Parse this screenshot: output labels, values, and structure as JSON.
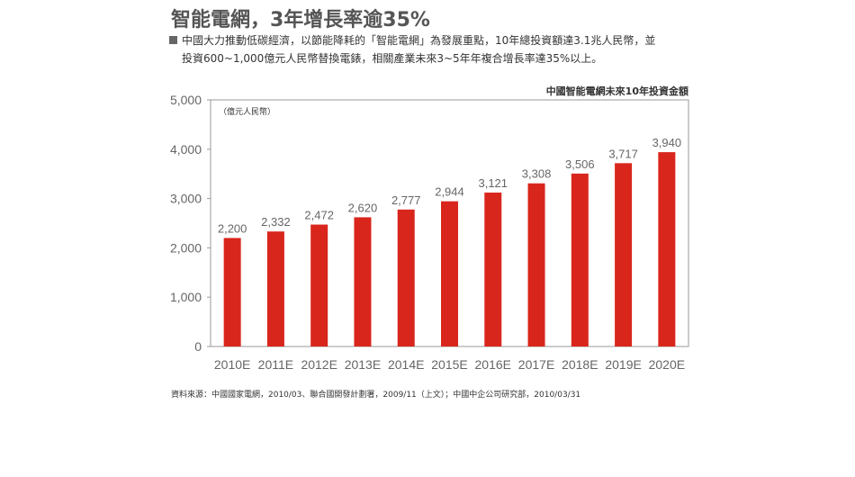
{
  "header": {
    "title": "智能電網，3年增長率逾35%",
    "bullet_line1": "中國大力推動低碳經濟，以節能降耗的「智能電網」為發展重點，10年總投資額達3.1兆人民幣，並",
    "bullet_line2": "投資600~1,000億元人民幣替換電錶，相關產業未來3~5年年複合增長率達35%以上。"
  },
  "chart_data": {
    "type": "bar",
    "title": "中國智能電網未來10年投資金額",
    "unit": "（億元人民幣）",
    "categories": [
      "2010E",
      "2011E",
      "2012E",
      "2013E",
      "2014E",
      "2015E",
      "2016E",
      "2017E",
      "2018E",
      "2019E",
      "2020E"
    ],
    "values": [
      2200,
      2332,
      2472,
      2620,
      2777,
      2944,
      3121,
      3308,
      3506,
      3717,
      3940
    ],
    "data_labels": [
      "2,200",
      "2,332",
      "2,472",
      "2,620",
      "2,777",
      "2,944",
      "3,121",
      "3,308",
      "3,506",
      "3,717",
      "3,940"
    ],
    "y_ticks": [
      0,
      1000,
      2000,
      3000,
      4000,
      5000
    ],
    "y_tick_labels": [
      "0",
      "1,000",
      "2,000",
      "3,000",
      "4,000",
      "5,000"
    ],
    "ylim": [
      0,
      5000
    ],
    "grid": false,
    "bar_color": "#d9261c"
  },
  "source": "資料來源：中國國家電網，2010/03、聯合國開發計劃署，2009/11（上文）；中國中企公司研究部，2010/03/31"
}
